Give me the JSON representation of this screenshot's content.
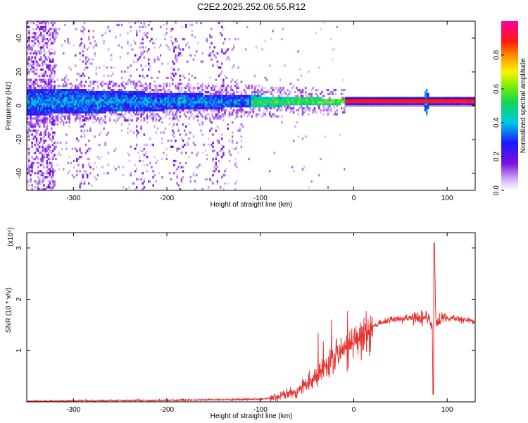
{
  "title": "C2E2.2025.252.06.55.R12",
  "colors": {
    "snr_line": "#e8322f",
    "cw_line": "#e8322f",
    "frame": "#000000"
  },
  "chart_data": [
    {
      "type": "heatmap",
      "xlabel": "Height of straight line (km)",
      "ylabel": "Frequency (Hz)",
      "xlim": [
        -350,
        130
      ],
      "ylim": [
        -50,
        50
      ],
      "x_ticks": [
        -300,
        -200,
        -100,
        0,
        100
      ],
      "y_ticks": [
        -40,
        -20,
        0,
        20,
        40
      ],
      "colorbar": {
        "label": "Normalized spectral amplitude",
        "range": [
          0,
          1
        ],
        "ticks": [
          "0.0",
          "0.2",
          "0.4",
          "0.6",
          "0.8"
        ],
        "tick_values": [
          0.0,
          0.2,
          0.4,
          0.6,
          0.8
        ],
        "colormap": "rainbow: white→violet→blue→cyan→green→yellow→orange→red→magenta"
      },
      "features": {
        "signal_band_center_hz": 2,
        "signal_band_width_hz_at_left": 16,
        "signal_band_width_hz_at_right": 3,
        "strong_line_start_km": -10,
        "strong_line_amplitude": 0.95,
        "noise_columns_km": [
          -330,
          -290,
          -225,
          -190,
          -145
        ],
        "spike_km": 77
      }
    },
    {
      "type": "line",
      "xlabel": "Height of straight line (km)",
      "ylabel": "SNR (10 * v/v)",
      "scale_label": "(x10⁴)",
      "xlim": [
        -350,
        130
      ],
      "ylim": [
        0,
        3.3
      ],
      "x_ticks": [
        -300,
        -200,
        -100,
        0,
        100
      ],
      "y_ticks": [
        1,
        2,
        3
      ],
      "series": [
        {
          "values_description_points": [
            [
              -350,
              0.01
            ],
            [
              -300,
              0.02
            ],
            [
              -200,
              0.03
            ],
            [
              -150,
              0.04
            ],
            [
              -100,
              0.05
            ],
            [
              -80,
              0.1
            ],
            [
              -60,
              0.2
            ],
            [
              -50,
              0.35
            ],
            [
              -40,
              0.5
            ],
            [
              -30,
              0.7
            ],
            [
              -20,
              0.9
            ],
            [
              -10,
              1.0
            ],
            [
              0,
              1.15
            ],
            [
              10,
              1.3
            ],
            [
              20,
              1.45
            ],
            [
              30,
              1.55
            ],
            [
              40,
              1.6
            ],
            [
              50,
              1.62
            ],
            [
              60,
              1.63
            ],
            [
              70,
              1.64
            ],
            [
              80,
              1.62
            ],
            [
              84,
              1.5
            ],
            [
              85,
              0.15
            ],
            [
              86,
              3.1
            ],
            [
              88,
              1.6
            ],
            [
              95,
              1.63
            ],
            [
              110,
              1.62
            ],
            [
              130,
              1.58
            ]
          ]
        }
      ]
    }
  ]
}
